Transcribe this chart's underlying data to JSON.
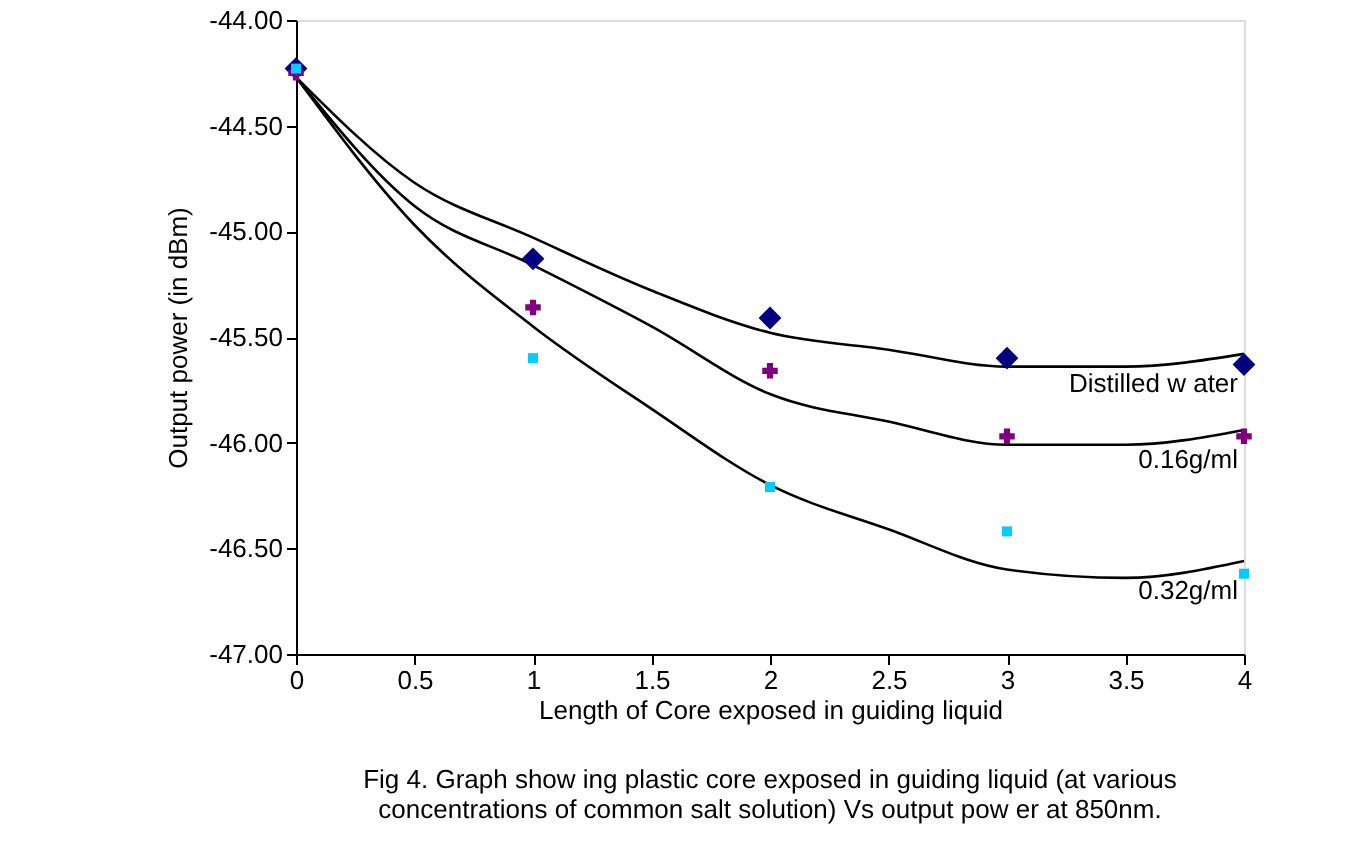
{
  "chart_data": {
    "type": "scatter",
    "xlabel": "Length of Core exposed in guiding liquid",
    "ylabel": "Output power (in dBm)",
    "x": [
      0,
      1,
      2,
      3,
      4
    ],
    "series": [
      {
        "color": "#000080",
        "marker": "diamond",
        "values": [
          -44.23,
          -45.13,
          -45.41,
          -45.6,
          -45.63
        ]
      },
      {
        "color": "#800080",
        "marker": "cross",
        "values": [
          -44.25,
          -45.36,
          -45.66,
          -45.97,
          -45.97
        ]
      },
      {
        "color": "#00ccff",
        "marker": "square",
        "values": [
          -44.23,
          -45.6,
          -46.21,
          -46.42,
          -46.62
        ]
      },
      {
        "type": "line",
        "name": "Distilled w ater",
        "color": "#000000",
        "marker": "none",
        "line_style": "solid",
        "x": [
          0,
          0.5,
          1,
          1.5,
          2,
          2.5,
          3,
          3.5,
          4
        ],
        "values": [
          -44.27,
          -44.77,
          -45.03,
          -45.28,
          -45.48,
          -45.56,
          -45.64,
          -45.64,
          -45.58
        ]
      },
      {
        "type": "line",
        "name": "0.16g/ml",
        "color": "#000000",
        "marker": "none",
        "line_style": "solid",
        "x": [
          0,
          0.5,
          1,
          1.5,
          2,
          2.5,
          3,
          3.5,
          4
        ],
        "values": [
          -44.27,
          -44.88,
          -45.16,
          -45.45,
          -45.77,
          -45.9,
          -46.01,
          -46.01,
          -45.94
        ]
      },
      {
        "type": "line",
        "name": "0.32g/ml",
        "color": "#000000",
        "marker": "none",
        "line_style": "solid",
        "x": [
          0,
          0.5,
          1,
          1.5,
          2,
          2.5,
          3,
          3.5,
          4
        ],
        "values": [
          -44.27,
          -44.97,
          -45.45,
          -45.84,
          -46.2,
          -46.41,
          -46.6,
          -46.64,
          -46.56
        ]
      }
    ],
    "xlim": [
      0,
      4
    ],
    "xticks": [
      0,
      0.5,
      1,
      1.5,
      2,
      2.5,
      3,
      3.5,
      4
    ],
    "ylim": [
      -47,
      -44
    ],
    "yticks": [
      {
        "value": -47,
        "label": "-47.00"
      },
      {
        "value": -46.5,
        "label": "-46.50"
      },
      {
        "value": -46,
        "label": "-46.00"
      },
      {
        "value": -45.5,
        "label": "-45.50"
      },
      {
        "value": -45,
        "label": "-45.00"
      },
      {
        "value": -44.5,
        "label": "-44.50"
      },
      {
        "value": -44,
        "label": "-44.00"
      }
    ],
    "grid": false,
    "annotations": [
      "Fig 4. Graph show ing plastic core exposed in guiding liquid (at various",
      "concentrations of common salt solution) Vs output pow er at 850nm."
    ]
  }
}
